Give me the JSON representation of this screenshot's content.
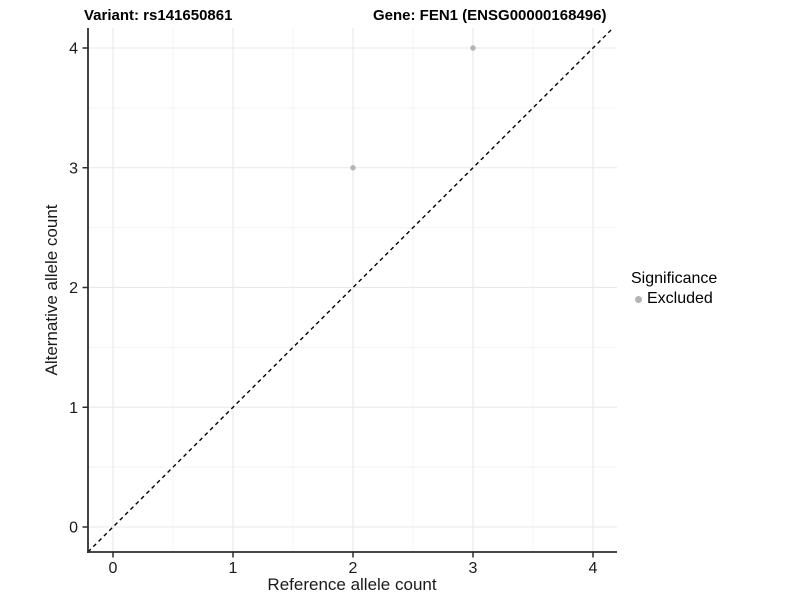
{
  "titles": {
    "variant": "Variant: rs141650861",
    "gene": "Gene: FEN1 (ENSG00000168496)"
  },
  "legend": {
    "title": "Significance",
    "position": "right",
    "items": [
      {
        "label": "Excluded",
        "color": "#b4b4b4"
      }
    ]
  },
  "chart_data": {
    "type": "scatter",
    "title_left": "Variant: rs141650861",
    "title_right": "Gene: FEN1 (ENSG00000168496)",
    "xlabel": "Reference allele count",
    "ylabel": "Alternative allele count",
    "xlim": [
      -0.21,
      4.21
    ],
    "ylim": [
      -0.21,
      4.17
    ],
    "x_ticks": [
      0,
      1,
      2,
      3,
      4
    ],
    "y_ticks": [
      0,
      1,
      2,
      3,
      4
    ],
    "x_minor_ticks": [
      0.5,
      1.5,
      2.5,
      3.5
    ],
    "y_minor_ticks": [
      0.5,
      1.5,
      2.5,
      3.5
    ],
    "grid": true,
    "legend_position": "right",
    "identity_line": {
      "type": "y=x",
      "style": "dashed",
      "color": "#000000"
    },
    "series": [
      {
        "name": "Excluded",
        "color": "#b4b4b4",
        "points": [
          {
            "x": 2,
            "y": 3
          },
          {
            "x": 3,
            "y": 4
          }
        ]
      }
    ],
    "colors": {
      "background": "#ffffff",
      "axis_line": "#2e2e2e",
      "tick_label": "#1a1a1a",
      "grid_major": "#e8e8e8",
      "grid_minor": "#f3f3f3",
      "point": "#b4b4b4"
    }
  }
}
